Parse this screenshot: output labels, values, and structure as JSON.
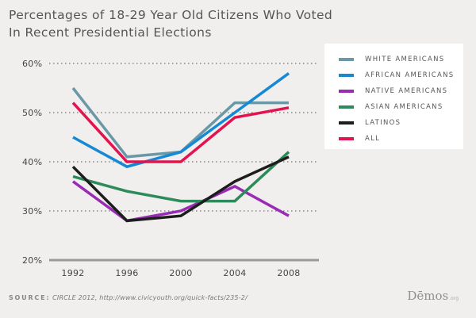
{
  "chart_data": {
    "type": "line",
    "title_lines": [
      "Percentages of 18-29 Year Old Citizens Who Voted",
      "In Recent Presidential Elections"
    ],
    "x": [
      "1992",
      "1996",
      "2000",
      "2004",
      "2008"
    ],
    "y_ticks": [
      "60%",
      "50%",
      "40%",
      "30%",
      "20%"
    ],
    "ylim": [
      20,
      60
    ],
    "grid": "dotted horizontal",
    "legend_position": "top-right",
    "series": [
      {
        "name": "WHITE AMERICANS",
        "color": "#6b98a6",
        "values": [
          55,
          41,
          42,
          52,
          52
        ]
      },
      {
        "name": "AFRICAN AMERICANS",
        "color": "#1789d4",
        "values": [
          45,
          39,
          42,
          50,
          58
        ]
      },
      {
        "name": "NATIVE AMERICANS",
        "color": "#9a2bb5",
        "values": [
          36,
          28,
          30,
          35,
          29
        ]
      },
      {
        "name": "ASIAN AMERICANS",
        "color": "#2e8a5a",
        "values": [
          37,
          34,
          32,
          32,
          42
        ]
      },
      {
        "name": "LATINOS",
        "color": "#1d1d1d",
        "values": [
          39,
          28,
          29,
          36,
          41
        ]
      },
      {
        "name": "ALL",
        "color": "#e3134f",
        "values": [
          52,
          40,
          40,
          49,
          51
        ]
      }
    ]
  },
  "source": {
    "key": "SOURCE:",
    "text": "CIRCLE 2012, http://www.civicyouth.org/quick-facts/235-2/"
  },
  "logo": {
    "main": "Dēmos",
    "sub": ".org"
  }
}
